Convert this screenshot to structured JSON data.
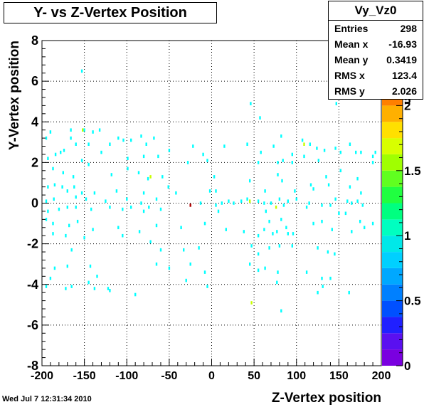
{
  "title": "Y- vs Z-Vertex Position",
  "stats": {
    "name": "Vy_Vz0",
    "rows": [
      {
        "label": "Entries",
        "value": "298"
      },
      {
        "label": "Mean x",
        "value": "-16.93"
      },
      {
        "label": "Mean y",
        "value": "0.3419"
      },
      {
        "label": "RMS x",
        "value": "123.4"
      },
      {
        "label": "RMS y",
        "value": "2.026"
      }
    ]
  },
  "footer_date": "Wed Jul  7 12:31:34 2010",
  "chart_data": {
    "type": "heatmap",
    "xlabel": "Z-Vertex position",
    "ylabel": "Y-Vertex position",
    "xlim": [
      -200,
      200
    ],
    "ylim": [
      -8,
      8
    ],
    "xticks": [
      "-200",
      "-150",
      "-100",
      "-50",
      "0",
      "50",
      "100",
      "150",
      "200"
    ],
    "yticks": [
      "-8",
      "-6",
      "-4",
      "-2",
      "0",
      "2",
      "4",
      "6",
      "8"
    ],
    "zlim": [
      0,
      2.5
    ],
    "zticks": [
      "0",
      "0.5",
      "1",
      "1.5",
      "2",
      "2.5"
    ],
    "zticks_shown": [
      "0",
      "0.5",
      "1",
      "1.5",
      "2",
      "5"
    ],
    "grid": true,
    "bin_size": {
      "x": 2,
      "y": 0.16
    },
    "cells": [
      [
        -153,
        6.5,
        1
      ],
      [
        -152,
        3.6,
        2
      ],
      [
        -150,
        3.6,
        1
      ],
      [
        46,
        4.9,
        1
      ],
      [
        57,
        4.2,
        1
      ],
      [
        147,
        4.9,
        1
      ],
      [
        -190,
        3.5,
        1
      ],
      [
        -166,
        3.6,
        1
      ],
      [
        -140,
        3.5,
        1
      ],
      [
        -132,
        3.6,
        1
      ],
      [
        -195,
        3.2,
        1
      ],
      [
        -178,
        2.5,
        1
      ],
      [
        -166,
        3.2,
        1
      ],
      [
        -160,
        2.9,
        1
      ],
      [
        -145,
        2.9,
        1
      ],
      [
        -120,
        2.9,
        1
      ],
      [
        -110,
        3.2,
        1
      ],
      [
        -104,
        3.1,
        1
      ],
      [
        -95,
        3.1,
        1
      ],
      [
        -83,
        3.3,
        1
      ],
      [
        -77,
        2.9,
        1
      ],
      [
        -68,
        3.2,
        1
      ],
      [
        -50,
        2.6,
        1
      ],
      [
        -22,
        2.8,
        1
      ],
      [
        -10,
        2.4,
        1
      ],
      [
        15,
        2.8,
        1
      ],
      [
        42,
        2.9,
        1
      ],
      [
        58,
        2.5,
        1
      ],
      [
        73,
        2.8,
        1
      ],
      [
        82,
        3.3,
        1
      ],
      [
        95,
        2.4,
        1
      ],
      [
        107,
        3.1,
        1
      ],
      [
        109,
        2.9,
        2
      ],
      [
        116,
        2.9,
        1
      ],
      [
        124,
        2.7,
        1
      ],
      [
        133,
        2.6,
        1
      ],
      [
        146,
        2.7,
        1
      ],
      [
        152,
        2.5,
        1
      ],
      [
        163,
        2.9,
        1
      ],
      [
        170,
        2.5,
        1
      ],
      [
        176,
        2.5,
        1
      ],
      [
        190,
        2.3,
        1
      ],
      [
        -193,
        2.2,
        1
      ],
      [
        -184,
        2.4,
        1
      ],
      [
        -174,
        2.6,
        1
      ],
      [
        -153,
        2.1,
        1
      ],
      [
        -130,
        2.5,
        1
      ],
      [
        -99,
        2.2,
        1
      ],
      [
        -80,
        2.3,
        1
      ],
      [
        -63,
        2.3,
        1
      ],
      [
        -28,
        2.0,
        1
      ],
      [
        -5,
        2.1,
        1
      ],
      [
        55,
        2.0,
        1
      ],
      [
        78,
        2.0,
        1
      ],
      [
        84,
        2.1,
        1
      ],
      [
        95,
        2.0,
        1
      ],
      [
        109,
        2.3,
        1
      ],
      [
        126,
        2.1,
        1
      ],
      [
        190,
        2.0,
        1
      ],
      [
        193,
        2.5,
        1
      ],
      [
        -187,
        1.7,
        1
      ],
      [
        -175,
        1.5,
        1
      ],
      [
        -163,
        1.3,
        1
      ],
      [
        -145,
        1.9,
        1
      ],
      [
        -118,
        1.4,
        1
      ],
      [
        -99,
        1.7,
        1
      ],
      [
        -86,
        1.5,
        1
      ],
      [
        -72,
        1.3,
        2
      ],
      [
        -75,
        1.2,
        1
      ],
      [
        -58,
        1.3,
        1
      ],
      [
        3,
        1.3,
        1
      ],
      [
        45,
        1.1,
        1
      ],
      [
        78,
        1.4,
        1
      ],
      [
        83,
        1.1,
        1
      ],
      [
        117,
        0.9,
        1
      ],
      [
        135,
        1.3,
        1
      ],
      [
        152,
        1.6,
        1
      ],
      [
        172,
        1.2,
        1
      ],
      [
        -193,
        0.8,
        1
      ],
      [
        -185,
        0.9,
        1
      ],
      [
        -176,
        0.8,
        1
      ],
      [
        -170,
        0.6,
        1
      ],
      [
        -162,
        0.8,
        1
      ],
      [
        -153,
        0.5,
        1
      ],
      [
        -138,
        0.5,
        1
      ],
      [
        -112,
        0.6,
        1
      ],
      [
        -80,
        0.5,
        1
      ],
      [
        -51,
        0.8,
        1
      ],
      [
        -42,
        0.5,
        1
      ],
      [
        -2,
        0.6,
        1
      ],
      [
        5,
        0.6,
        1
      ],
      [
        63,
        0.6,
        1
      ],
      [
        98,
        0.6,
        1
      ],
      [
        120,
        0.7,
        1
      ],
      [
        138,
        0.9,
        1
      ],
      [
        163,
        0.8,
        1
      ],
      [
        176,
        0.5,
        1
      ],
      [
        -195,
        0.1,
        1
      ],
      [
        -186,
        0.2,
        1
      ],
      [
        -160,
        0.3,
        1
      ],
      [
        -148,
        0.2,
        1
      ],
      [
        -125,
        0.1,
        1
      ],
      [
        -100,
        0.2,
        1
      ],
      [
        -83,
        0.0,
        1
      ],
      [
        -65,
        0.2,
        1
      ],
      [
        -25,
        -0.1,
        3
      ],
      [
        -13,
        0.0,
        1
      ],
      [
        5,
        -0.1,
        1
      ],
      [
        12,
        0.0,
        1
      ],
      [
        20,
        0.1,
        1
      ],
      [
        26,
        0.0,
        1
      ],
      [
        35,
        0.1,
        1
      ],
      [
        42,
        0.2,
        1
      ],
      [
        45,
        0.1,
        2
      ],
      [
        55,
        0.1,
        1
      ],
      [
        62,
        0.0,
        1
      ],
      [
        70,
        0.0,
        1
      ],
      [
        76,
        -0.2,
        2
      ],
      [
        80,
        0.2,
        1
      ],
      [
        85,
        -0.1,
        1
      ],
      [
        90,
        0.1,
        1
      ],
      [
        100,
        0.2,
        1
      ],
      [
        115,
        0.0,
        1
      ],
      [
        130,
        -0.1,
        1
      ],
      [
        140,
        -0.1,
        1
      ],
      [
        146,
        0.2,
        1
      ],
      [
        160,
        0.1,
        1
      ],
      [
        165,
        0.0,
        1
      ],
      [
        172,
        0.1,
        1
      ],
      [
        178,
        -0.1,
        1
      ],
      [
        -193,
        -0.4,
        1
      ],
      [
        -180,
        -0.3,
        1
      ],
      [
        -170,
        -0.2,
        1
      ],
      [
        -160,
        -0.2,
        1
      ],
      [
        -142,
        -0.3,
        1
      ],
      [
        -120,
        -0.2,
        1
      ],
      [
        -105,
        -0.3,
        1
      ],
      [
        -95,
        -0.2,
        1
      ],
      [
        -80,
        -0.4,
        1
      ],
      [
        -74,
        -0.2,
        1
      ],
      [
        -60,
        -0.3,
        1
      ],
      [
        8,
        -0.4,
        1
      ],
      [
        64,
        -0.4,
        1
      ],
      [
        112,
        -0.2,
        1
      ],
      [
        150,
        -0.5,
        1
      ],
      [
        158,
        -0.5,
        1
      ],
      [
        -195,
        -0.8,
        1
      ],
      [
        -187,
        -1.0,
        1
      ],
      [
        -168,
        -1.1,
        1
      ],
      [
        -158,
        -0.9,
        1
      ],
      [
        -140,
        -1.3,
        1
      ],
      [
        -110,
        -1.2,
        1
      ],
      [
        -85,
        -1.4,
        1
      ],
      [
        -65,
        -1.1,
        1
      ],
      [
        -36,
        -1.2,
        1
      ],
      [
        -8,
        -1.0,
        1
      ],
      [
        17,
        -1.3,
        1
      ],
      [
        38,
        -1.4,
        1
      ],
      [
        62,
        -1.3,
        1
      ],
      [
        68,
        -0.9,
        1
      ],
      [
        82,
        -0.8,
        1
      ],
      [
        88,
        -1.2,
        1
      ],
      [
        120,
        -1.0,
        1
      ],
      [
        130,
        -0.9,
        1
      ],
      [
        142,
        -1.3,
        1
      ],
      [
        165,
        -1.4,
        1
      ],
      [
        175,
        -0.9,
        1
      ],
      [
        180,
        -1.2,
        1
      ],
      [
        190,
        -1.0,
        1
      ],
      [
        -187,
        -1.5,
        1
      ],
      [
        -172,
        -1.6,
        1
      ],
      [
        -150,
        -1.7,
        1
      ],
      [
        -105,
        -1.6,
        1
      ],
      [
        -72,
        -1.9,
        1
      ],
      [
        55,
        -1.6,
        1
      ],
      [
        72,
        -1.5,
        1
      ],
      [
        77,
        -1.4,
        1
      ],
      [
        90,
        -1.5,
        1
      ],
      [
        96,
        -1.5,
        1
      ],
      [
        -165,
        -2.3,
        1
      ],
      [
        -60,
        -2.3,
        1
      ],
      [
        -33,
        -2.3,
        1
      ],
      [
        -15,
        -2.2,
        1
      ],
      [
        47,
        -2.1,
        1
      ],
      [
        55,
        -2.5,
        1
      ],
      [
        68,
        -2.2,
        1
      ],
      [
        80,
        -2.1,
        1
      ],
      [
        95,
        -2.1,
        1
      ],
      [
        125,
        -2.2,
        1
      ],
      [
        137,
        -2.4,
        1
      ],
      [
        145,
        -2.5,
        1
      ],
      [
        -185,
        -3.2,
        1
      ],
      [
        -170,
        -3.1,
        1
      ],
      [
        -143,
        -3.1,
        1
      ],
      [
        -65,
        -3.0,
        1
      ],
      [
        -25,
        -3.0,
        1
      ],
      [
        -8,
        -3.4,
        1
      ],
      [
        45,
        -3.0,
        1
      ],
      [
        55,
        -3.3,
        1
      ],
      [
        63,
        -3.2,
        1
      ],
      [
        78,
        -3.4,
        1
      ],
      [
        112,
        -3.4,
        1
      ],
      [
        -190,
        -3.7,
        1
      ],
      [
        -145,
        -3.9,
        1
      ],
      [
        -135,
        -3.6,
        1
      ],
      [
        -30,
        -3.8,
        1
      ],
      [
        -195,
        -4.1,
        1
      ],
      [
        -165,
        -4.1,
        1
      ],
      [
        -138,
        -4.2,
        1
      ],
      [
        -122,
        -4.2,
        1
      ],
      [
        -5,
        -4.1,
        1
      ],
      [
        77,
        -3.9,
        1
      ],
      [
        130,
        -3.7,
        1
      ],
      [
        140,
        -3.7,
        1
      ],
      [
        -172,
        -4.2,
        1
      ],
      [
        -120,
        -4.3,
        1
      ],
      [
        125,
        -4.4,
        1
      ],
      [
        131,
        -4.1,
        1
      ],
      [
        -90,
        -4.5,
        1
      ],
      [
        47,
        -4.9,
        2
      ],
      [
        82,
        -5.3,
        1
      ],
      [
        162,
        -4.4,
        1
      ],
      [
        -50,
        -3.2,
        1
      ]
    ]
  }
}
